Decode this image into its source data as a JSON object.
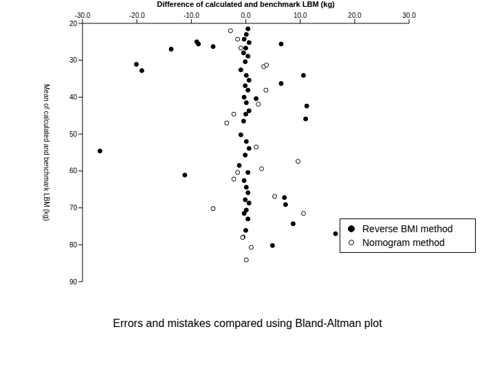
{
  "chart_data": {
    "type": "scatter",
    "title": "Difference of calculated and benchmark LBM (kg)",
    "y_label": "Mean of calculated and benchmark LBM (kg)",
    "caption": "Errors and mistakes compared using Bland-Altman plot",
    "xlim": [
      -30,
      30
    ],
    "xticks": [
      {
        "value": -30,
        "label": "-30.0"
      },
      {
        "value": -20,
        "label": "-20.0"
      },
      {
        "value": -10,
        "label": "-10.0"
      },
      {
        "value": 0,
        "label": "0.0"
      },
      {
        "value": 10,
        "label": "10.0"
      },
      {
        "value": 20,
        "label": "20.0"
      },
      {
        "value": 30,
        "label": "30.0"
      }
    ],
    "ylim": [
      20,
      90
    ],
    "yticks": [
      20,
      30,
      40,
      50,
      60,
      70,
      80,
      90
    ],
    "grid": false,
    "legend": "right",
    "series": [
      {
        "name": "Reverse BMI method",
        "color": "#000000",
        "marker": "filled_circle",
        "x": [
          -26.8,
          -20.1,
          -19.1,
          -13.7,
          -9.0,
          -8.7,
          -6.0,
          -11.2,
          6.5,
          10.6,
          6.5,
          11.2,
          11.0,
          7.1,
          7.3,
          8.7,
          16.5,
          4.9,
          -0.5,
          1.9,
          0.4,
          0.1,
          -0.3,
          0.6,
          0.0,
          -0.4,
          0.4,
          -0.1,
          -0.9,
          0.1,
          0.6,
          -0.1,
          0.4,
          -0.3,
          0.1,
          0.6,
          0.0,
          -0.4,
          -0.9,
          0.1,
          0.6,
          -0.1,
          -1.2,
          0.4,
          -0.3,
          0.1,
          0.4,
          -0.1,
          0.6,
          0.1,
          -0.3,
          0.4,
          0.0
        ],
        "values": [
          54.6,
          31.1,
          32.8,
          27.0,
          25.0,
          25.6,
          26.3,
          61.1,
          25.6,
          34.1,
          36.3,
          42.4,
          45.9,
          67.2,
          69.1,
          74.3,
          77.0,
          80.2,
          77.9,
          40.4,
          21.5,
          23.0,
          24.3,
          25.2,
          26.7,
          28.0,
          28.9,
          30.4,
          32.6,
          34.1,
          35.4,
          36.9,
          38.1,
          40.0,
          41.5,
          43.7,
          44.6,
          46.5,
          50.2,
          52.0,
          53.9,
          55.7,
          58.5,
          60.4,
          62.6,
          64.4,
          65.9,
          67.8,
          68.7,
          70.6,
          71.5,
          73.0,
          76.1
        ]
      },
      {
        "name": "Nomogram method",
        "color": "#000000",
        "marker": "open_circle",
        "x": [
          -2.8,
          -1.5,
          -0.9,
          3.3,
          3.8,
          3.7,
          2.3,
          -2.2,
          -3.5,
          1.9,
          9.6,
          -1.5,
          -2.2,
          5.3,
          10.6,
          -6.0,
          2.9,
          1.0,
          0.1,
          -0.6
        ],
        "values": [
          22.0,
          24.3,
          26.7,
          31.7,
          31.3,
          38.1,
          41.9,
          44.6,
          47.0,
          53.5,
          57.4,
          60.4,
          62.2,
          66.9,
          71.5,
          70.2,
          59.4,
          80.7,
          84.1,
          78.0
        ]
      }
    ]
  }
}
